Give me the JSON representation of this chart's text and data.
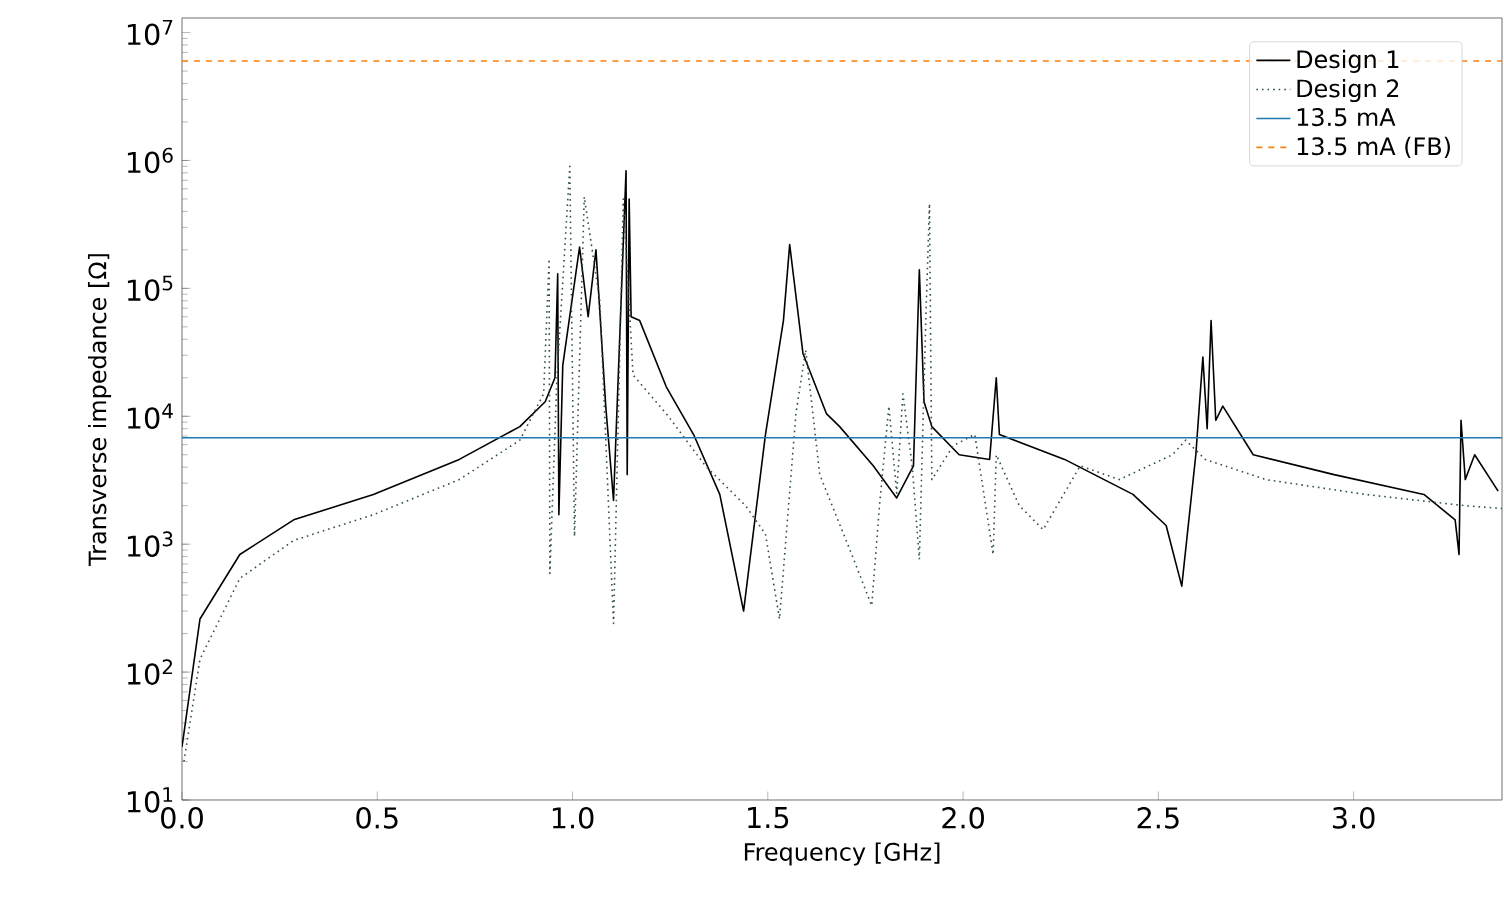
{
  "chart_data": {
    "type": "line",
    "xlabel": "Frequency [GHz]",
    "ylabel": "Transverse impedance [Ω]",
    "log": "y",
    "legend": "top right",
    "xlim": [
      0,
      3.38
    ],
    "ylim": [
      10,
      13000000
    ],
    "xticks": [
      {
        "value": 0,
        "label": "0.0"
      },
      {
        "value": 0.5,
        "label": "0.5"
      },
      {
        "value": 1,
        "label": "1.0"
      },
      {
        "value": 1.5,
        "label": "1.5"
      },
      {
        "value": 2,
        "label": "2.0"
      },
      {
        "value": 2.5,
        "label": "2.5"
      },
      {
        "value": 3,
        "label": "3.0"
      }
    ],
    "yticks": [
      {
        "value": 10,
        "label": "10$^{1}$"
      },
      {
        "value": 100,
        "label": "10$^{2}$"
      },
      {
        "value": 1000,
        "label": "10$^{3}$"
      },
      {
        "value": 10000,
        "label": "10$^{4}$"
      },
      {
        "value": 100000,
        "label": "10$^{5}$"
      },
      {
        "value": 1000000,
        "label": "10$^{6}$"
      },
      {
        "value": 10000000,
        "label": "10$^{7}$"
      }
    ],
    "series": [
      {
        "name": "Design 1",
        "color": "#000000",
        "line_style": "solid",
        "x": [
          0.0,
          0.046,
          0.148,
          0.286,
          0.49,
          0.71,
          0.865,
          0.93,
          0.955,
          0.962,
          0.965,
          0.975,
          1.018,
          1.04,
          1.06,
          1.085,
          1.105,
          1.137,
          1.14,
          1.145,
          1.15,
          1.172,
          1.24,
          1.31,
          1.377,
          1.438,
          1.494,
          1.54,
          1.556,
          1.59,
          1.65,
          1.684,
          1.77,
          1.83,
          1.873,
          1.888,
          1.9,
          1.92,
          1.99,
          2.068,
          2.085,
          2.093,
          2.26,
          2.435,
          2.52,
          2.56,
          2.596,
          2.614,
          2.625,
          2.635,
          2.647,
          2.665,
          2.743,
          2.95,
          3.18,
          3.26,
          3.27,
          3.275,
          3.286,
          3.31,
          3.37
        ],
        "values": [
          26,
          260,
          830,
          1550,
          2450,
          4600,
          8300,
          13000,
          20000,
          130000,
          1700,
          25000,
          210000,
          60000,
          200000,
          12000,
          2200,
          830000,
          3500,
          500000,
          60000,
          56000,
          17000,
          7200,
          2450,
          300,
          7200,
          56000,
          220000,
          31000,
          10500,
          8300,
          4100,
          2300,
          4100,
          140000,
          13000,
          8300,
          5000,
          4600,
          20000,
          7200,
          4600,
          2450,
          1400,
          470,
          5000,
          29000,
          8000,
          56000,
          9300,
          12000,
          5000,
          3500,
          2450,
          1550,
          830,
          9300,
          3200,
          5000,
          2600
        ]
      },
      {
        "name": "Design 2",
        "color": "#2f4f4f",
        "line_style": "dotted",
        "x": [
          0.005,
          0.046,
          0.148,
          0.286,
          0.49,
          0.71,
          0.865,
          0.926,
          0.94,
          0.942,
          0.96,
          0.993,
          1.005,
          1.03,
          1.07,
          1.105,
          1.13,
          1.155,
          1.24,
          1.34,
          1.443,
          1.494,
          1.53,
          1.572,
          1.597,
          1.633,
          1.72,
          1.766,
          1.786,
          1.81,
          1.83,
          1.846,
          1.87,
          1.888,
          1.905,
          1.914,
          1.92,
          1.975,
          2.03,
          2.077,
          2.085,
          2.144,
          2.205,
          2.3,
          2.4,
          2.536,
          2.57,
          2.62,
          2.775,
          3.03,
          3.286,
          3.38
        ],
        "values": [
          20,
          126,
          540,
          1070,
          1700,
          3200,
          6500,
          15000,
          170000,
          590,
          20000,
          900000,
          1150,
          520000,
          79000,
          240,
          500000,
          21000,
          10500,
          4100,
          2000,
          1200,
          260,
          10500,
          33000,
          3500,
          760,
          330,
          2000,
          12000,
          2500,
          15000,
          4000,
          760,
          63000,
          460000,
          3200,
          5900,
          7200,
          830,
          5000,
          2000,
          1300,
          4100,
          3200,
          5000,
          6500,
          4600,
          3200,
          2450,
          2000,
          1900
        ]
      }
    ],
    "ref_lines": [
      {
        "axis": "y",
        "value": 6800,
        "label": "13.5 mA",
        "color": "#1f77b4",
        "line_style": "solid"
      },
      {
        "axis": "y",
        "value": 6000000,
        "label": "13.5 mA (FB)",
        "color": "#ff7f0e",
        "line_style": "dashed"
      }
    ]
  }
}
